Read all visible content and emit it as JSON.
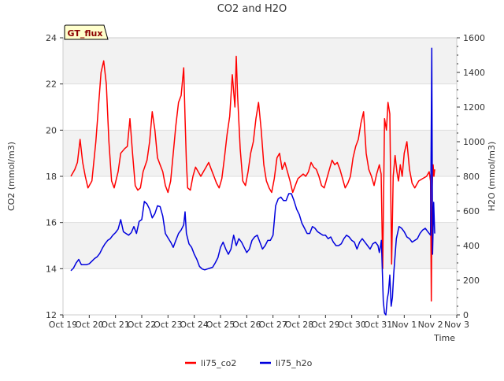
{
  "chart_data": {
    "type": "line",
    "title": "CO2 and H2O",
    "badge": "GT_flux",
    "xlabel": "Time",
    "ylabel_left": "CO2 (mmol/m3)",
    "ylabel_right": "H2O (mmol/m3)",
    "xlim": [
      0,
      15
    ],
    "ylim_left": [
      12,
      24
    ],
    "ylim_right": [
      0,
      1600
    ],
    "x_ticks": [
      "Oct 19",
      "Oct 20",
      "Oct 21",
      "Oct 22",
      "Oct 23",
      "Oct 24",
      "Oct 25",
      "Oct 26",
      "Oct 27",
      "Oct 28",
      "Oct 29",
      "Oct 30",
      "Oct 31",
      "Nov 1",
      "Nov 2",
      "Nov 3"
    ],
    "y_ticks_left": [
      12,
      14,
      16,
      18,
      20,
      22,
      24
    ],
    "y_ticks_right": [
      0,
      200,
      400,
      600,
      800,
      1000,
      1200,
      1400,
      1600
    ],
    "grid": "horizontal bands",
    "legend_position": "bottom-center",
    "series": [
      {
        "name": "li75_co2",
        "axis": "left",
        "color": "#ff0000",
        "points": [
          [
            0.3,
            18.0
          ],
          [
            0.45,
            18.3
          ],
          [
            0.55,
            18.6
          ],
          [
            0.65,
            19.6
          ],
          [
            0.75,
            18.6
          ],
          [
            0.85,
            18.0
          ],
          [
            0.95,
            17.5
          ],
          [
            1.1,
            17.8
          ],
          [
            1.25,
            19.5
          ],
          [
            1.35,
            21.0
          ],
          [
            1.45,
            22.5
          ],
          [
            1.55,
            23.0
          ],
          [
            1.65,
            22.0
          ],
          [
            1.75,
            19.5
          ],
          [
            1.85,
            17.8
          ],
          [
            1.95,
            17.5
          ],
          [
            2.1,
            18.2
          ],
          [
            2.2,
            19.0
          ],
          [
            2.35,
            19.2
          ],
          [
            2.45,
            19.3
          ],
          [
            2.55,
            20.5
          ],
          [
            2.65,
            19.0
          ],
          [
            2.75,
            17.6
          ],
          [
            2.85,
            17.4
          ],
          [
            2.95,
            17.5
          ],
          [
            3.05,
            18.2
          ],
          [
            3.2,
            18.7
          ],
          [
            3.3,
            19.5
          ],
          [
            3.4,
            20.8
          ],
          [
            3.5,
            20.0
          ],
          [
            3.6,
            18.8
          ],
          [
            3.7,
            18.5
          ],
          [
            3.8,
            18.2
          ],
          [
            3.9,
            17.6
          ],
          [
            4.0,
            17.3
          ],
          [
            4.1,
            17.8
          ],
          [
            4.2,
            19.0
          ],
          [
            4.3,
            20.2
          ],
          [
            4.4,
            21.2
          ],
          [
            4.5,
            21.5
          ],
          [
            4.6,
            22.7
          ],
          [
            4.65,
            20.5
          ],
          [
            4.7,
            18.6
          ],
          [
            4.75,
            17.5
          ],
          [
            4.85,
            17.4
          ],
          [
            4.95,
            18.0
          ],
          [
            5.05,
            18.4
          ],
          [
            5.15,
            18.2
          ],
          [
            5.25,
            18.0
          ],
          [
            5.35,
            18.2
          ],
          [
            5.45,
            18.4
          ],
          [
            5.55,
            18.6
          ],
          [
            5.65,
            18.3
          ],
          [
            5.75,
            18.0
          ],
          [
            5.85,
            17.7
          ],
          [
            5.95,
            17.5
          ],
          [
            6.05,
            17.9
          ],
          [
            6.15,
            18.8
          ],
          [
            6.25,
            19.8
          ],
          [
            6.35,
            20.6
          ],
          [
            6.45,
            22.4
          ],
          [
            6.55,
            21.0
          ],
          [
            6.6,
            23.2
          ],
          [
            6.65,
            21.5
          ],
          [
            6.75,
            19.2
          ],
          [
            6.85,
            17.8
          ],
          [
            6.95,
            17.6
          ],
          [
            7.05,
            18.2
          ],
          [
            7.15,
            19.0
          ],
          [
            7.25,
            19.5
          ],
          [
            7.35,
            20.5
          ],
          [
            7.45,
            21.2
          ],
          [
            7.55,
            20.0
          ],
          [
            7.65,
            18.5
          ],
          [
            7.75,
            17.8
          ],
          [
            7.85,
            17.5
          ],
          [
            7.95,
            17.3
          ],
          [
            8.05,
            17.9
          ],
          [
            8.15,
            18.8
          ],
          [
            8.25,
            19.0
          ],
          [
            8.35,
            18.3
          ],
          [
            8.45,
            18.6
          ],
          [
            8.55,
            18.2
          ],
          [
            8.65,
            17.8
          ],
          [
            8.75,
            17.3
          ],
          [
            8.85,
            17.6
          ],
          [
            8.95,
            17.9
          ],
          [
            9.05,
            18.0
          ],
          [
            9.15,
            18.1
          ],
          [
            9.25,
            18.0
          ],
          [
            9.35,
            18.2
          ],
          [
            9.45,
            18.6
          ],
          [
            9.55,
            18.4
          ],
          [
            9.65,
            18.3
          ],
          [
            9.75,
            18.0
          ],
          [
            9.85,
            17.6
          ],
          [
            9.95,
            17.5
          ],
          [
            10.05,
            17.9
          ],
          [
            10.15,
            18.3
          ],
          [
            10.25,
            18.7
          ],
          [
            10.35,
            18.5
          ],
          [
            10.45,
            18.6
          ],
          [
            10.55,
            18.3
          ],
          [
            10.65,
            17.9
          ],
          [
            10.75,
            17.5
          ],
          [
            10.85,
            17.7
          ],
          [
            10.95,
            18.0
          ],
          [
            11.05,
            18.8
          ],
          [
            11.15,
            19.3
          ],
          [
            11.25,
            19.6
          ],
          [
            11.35,
            20.3
          ],
          [
            11.45,
            20.8
          ],
          [
            11.55,
            19.0
          ],
          [
            11.65,
            18.3
          ],
          [
            11.75,
            18.0
          ],
          [
            11.85,
            17.6
          ],
          [
            11.95,
            18.1
          ],
          [
            12.05,
            18.5
          ],
          [
            12.12,
            18.1
          ],
          [
            12.18,
            14.0
          ],
          [
            12.25,
            20.5
          ],
          [
            12.32,
            20.0
          ],
          [
            12.38,
            21.2
          ],
          [
            12.45,
            20.7
          ],
          [
            12.52,
            14.2
          ],
          [
            12.58,
            18.0
          ],
          [
            12.65,
            18.9
          ],
          [
            12.72,
            18.2
          ],
          [
            12.78,
            17.8
          ],
          [
            12.85,
            18.5
          ],
          [
            12.92,
            18.0
          ],
          [
            13.0,
            19.0
          ],
          [
            13.1,
            19.5
          ],
          [
            13.2,
            18.3
          ],
          [
            13.3,
            17.7
          ],
          [
            13.4,
            17.5
          ],
          [
            13.55,
            17.8
          ],
          [
            13.7,
            17.9
          ],
          [
            13.85,
            18.0
          ],
          [
            13.95,
            18.2
          ],
          [
            14.0,
            17.8
          ],
          [
            14.03,
            12.6
          ],
          [
            14.06,
            17.5
          ],
          [
            14.1,
            18.5
          ],
          [
            14.13,
            18.0
          ],
          [
            14.16,
            18.3
          ]
        ]
      },
      {
        "name": "li75_h2o",
        "axis": "right",
        "color": "#0000dd",
        "points": [
          [
            0.3,
            255
          ],
          [
            0.4,
            270
          ],
          [
            0.5,
            300
          ],
          [
            0.6,
            320
          ],
          [
            0.7,
            290
          ],
          [
            0.8,
            290
          ],
          [
            0.9,
            290
          ],
          [
            1.0,
            295
          ],
          [
            1.1,
            310
          ],
          [
            1.2,
            325
          ],
          [
            1.3,
            335
          ],
          [
            1.4,
            355
          ],
          [
            1.5,
            385
          ],
          [
            1.6,
            410
          ],
          [
            1.7,
            430
          ],
          [
            1.8,
            440
          ],
          [
            1.9,
            460
          ],
          [
            2.0,
            475
          ],
          [
            2.1,
            495
          ],
          [
            2.2,
            550
          ],
          [
            2.3,
            480
          ],
          [
            2.4,
            470
          ],
          [
            2.5,
            460
          ],
          [
            2.6,
            475
          ],
          [
            2.7,
            510
          ],
          [
            2.8,
            470
          ],
          [
            2.9,
            540
          ],
          [
            3.0,
            550
          ],
          [
            3.1,
            655
          ],
          [
            3.2,
            640
          ],
          [
            3.3,
            610
          ],
          [
            3.4,
            560
          ],
          [
            3.5,
            585
          ],
          [
            3.6,
            630
          ],
          [
            3.7,
            625
          ],
          [
            3.8,
            570
          ],
          [
            3.9,
            470
          ],
          [
            4.0,
            445
          ],
          [
            4.1,
            420
          ],
          [
            4.2,
            390
          ],
          [
            4.3,
            430
          ],
          [
            4.4,
            470
          ],
          [
            4.5,
            490
          ],
          [
            4.6,
            520
          ],
          [
            4.65,
            595
          ],
          [
            4.7,
            470
          ],
          [
            4.8,
            410
          ],
          [
            4.9,
            390
          ],
          [
            5.0,
            350
          ],
          [
            5.1,
            320
          ],
          [
            5.2,
            280
          ],
          [
            5.3,
            265
          ],
          [
            5.4,
            260
          ],
          [
            5.5,
            265
          ],
          [
            5.6,
            270
          ],
          [
            5.7,
            275
          ],
          [
            5.8,
            300
          ],
          [
            5.9,
            330
          ],
          [
            6.0,
            390
          ],
          [
            6.1,
            420
          ],
          [
            6.2,
            380
          ],
          [
            6.3,
            350
          ],
          [
            6.4,
            380
          ],
          [
            6.5,
            460
          ],
          [
            6.6,
            400
          ],
          [
            6.7,
            440
          ],
          [
            6.8,
            420
          ],
          [
            6.9,
            390
          ],
          [
            7.0,
            360
          ],
          [
            7.1,
            380
          ],
          [
            7.2,
            430
          ],
          [
            7.3,
            450
          ],
          [
            7.4,
            460
          ],
          [
            7.5,
            420
          ],
          [
            7.6,
            380
          ],
          [
            7.7,
            400
          ],
          [
            7.8,
            430
          ],
          [
            7.9,
            430
          ],
          [
            8.0,
            460
          ],
          [
            8.1,
            630
          ],
          [
            8.2,
            670
          ],
          [
            8.3,
            680
          ],
          [
            8.4,
            660
          ],
          [
            8.5,
            660
          ],
          [
            8.6,
            700
          ],
          [
            8.7,
            700
          ],
          [
            8.8,
            660
          ],
          [
            8.9,
            610
          ],
          [
            9.0,
            580
          ],
          [
            9.1,
            530
          ],
          [
            9.2,
            500
          ],
          [
            9.3,
            470
          ],
          [
            9.4,
            470
          ],
          [
            9.5,
            510
          ],
          [
            9.6,
            500
          ],
          [
            9.7,
            480
          ],
          [
            9.8,
            470
          ],
          [
            9.9,
            460
          ],
          [
            10.0,
            460
          ],
          [
            10.1,
            440
          ],
          [
            10.2,
            450
          ],
          [
            10.3,
            420
          ],
          [
            10.4,
            400
          ],
          [
            10.5,
            400
          ],
          [
            10.6,
            410
          ],
          [
            10.7,
            440
          ],
          [
            10.8,
            460
          ],
          [
            10.9,
            450
          ],
          [
            11.0,
            430
          ],
          [
            11.1,
            420
          ],
          [
            11.2,
            380
          ],
          [
            11.3,
            420
          ],
          [
            11.4,
            440
          ],
          [
            11.5,
            420
          ],
          [
            11.6,
            400
          ],
          [
            11.7,
            380
          ],
          [
            11.8,
            410
          ],
          [
            11.9,
            420
          ],
          [
            12.0,
            400
          ],
          [
            12.05,
            360
          ],
          [
            12.1,
            400
          ],
          [
            12.13,
            430
          ],
          [
            12.2,
            80
          ],
          [
            12.25,
            10
          ],
          [
            12.3,
            0
          ],
          [
            12.35,
            90
          ],
          [
            12.4,
            130
          ],
          [
            12.45,
            230
          ],
          [
            12.5,
            50
          ],
          [
            12.55,
            100
          ],
          [
            12.6,
            240
          ],
          [
            12.7,
            440
          ],
          [
            12.8,
            510
          ],
          [
            12.9,
            500
          ],
          [
            13.0,
            480
          ],
          [
            13.1,
            450
          ],
          [
            13.2,
            440
          ],
          [
            13.3,
            420
          ],
          [
            13.4,
            430
          ],
          [
            13.5,
            440
          ],
          [
            13.6,
            470
          ],
          [
            13.7,
            490
          ],
          [
            13.8,
            500
          ],
          [
            13.9,
            480
          ],
          [
            14.0,
            460
          ],
          [
            14.05,
            1540
          ],
          [
            14.08,
            350
          ],
          [
            14.12,
            650
          ],
          [
            14.16,
            470
          ]
        ]
      }
    ]
  },
  "legend": [
    {
      "label": "li75_co2",
      "color": "#ff0000"
    },
    {
      "label": "li75_h2o",
      "color": "#0000dd"
    }
  ]
}
